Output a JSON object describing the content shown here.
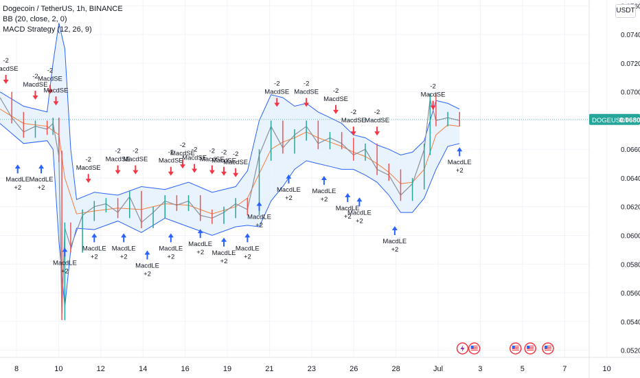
{
  "header": {
    "symbol_line": "Dogecoin / TetherUS, 1h, BINANCE",
    "bb_line": "BB (20, close, 2, 0)",
    "macd_line": "MACD Strategy (12, 26, 9)",
    "currency": "USDT"
  },
  "last_price_tag": {
    "symbol": "DOGEUSDT",
    "price": "0.06808"
  },
  "colors": {
    "band": "#2962ff",
    "band_fill": "#e3f0fc",
    "basis": "#f57c3a",
    "up": "#26a69a",
    "down": "#ef5350",
    "short_arrow": "#f23645",
    "long_arrow": "#2962ff",
    "last_line": "#26a69a",
    "grid": "#f0f3fa"
  },
  "chart_data": {
    "type": "line",
    "title": "Dogecoin / TetherUS, 1h, BINANCE",
    "xlabel": "",
    "ylabel": "",
    "y_ticks": [
      "0.07600",
      "0.07400",
      "0.07200",
      "0.07000",
      "0.06800",
      "0.06600",
      "0.06400",
      "0.06200",
      "0.06000",
      "0.05800",
      "0.05600",
      "0.05400",
      "0.05200"
    ],
    "x_ticks": [
      "8",
      "10",
      "12",
      "14",
      "16",
      "19",
      "21",
      "23",
      "26",
      "28",
      "Jul",
      "3",
      "5",
      "7",
      "10"
    ],
    "ylim": [
      0.0515,
      0.0764
    ],
    "x_range": [
      0,
      100
    ],
    "grid": true,
    "series": [
      {
        "name": "close",
        "points": [
          [
            0,
            0.0696
          ],
          [
            2,
            0.0682
          ],
          [
            4,
            0.0672
          ],
          [
            6,
            0.0676
          ],
          [
            8,
            0.0674
          ],
          [
            9,
            0.0678
          ],
          [
            10,
            0.0655
          ],
          [
            10.5,
            0.0545
          ],
          [
            11,
            0.0605
          ],
          [
            12,
            0.0592
          ],
          [
            14,
            0.0614
          ],
          [
            16,
            0.062
          ],
          [
            18,
            0.0622
          ],
          [
            20,
            0.0616
          ],
          [
            22,
            0.0627
          ],
          [
            24,
            0.0609
          ],
          [
            26,
            0.0616
          ],
          [
            28,
            0.0624
          ],
          [
            30,
            0.0621
          ],
          [
            32,
            0.0624
          ],
          [
            34,
            0.0614
          ],
          [
            36,
            0.0612
          ],
          [
            38,
            0.0616
          ],
          [
            40,
            0.0622
          ],
          [
            42,
            0.0618
          ],
          [
            44,
            0.0656
          ],
          [
            46,
            0.0676
          ],
          [
            48,
            0.0661
          ],
          [
            50,
            0.067
          ],
          [
            52,
            0.0676
          ],
          [
            54,
            0.0664
          ],
          [
            56,
            0.0668
          ],
          [
            58,
            0.0664
          ],
          [
            60,
            0.0656
          ],
          [
            62,
            0.066
          ],
          [
            64,
            0.0646
          ],
          [
            66,
            0.0642
          ],
          [
            68,
            0.0628
          ],
          [
            70,
            0.0636
          ],
          [
            72,
            0.066
          ],
          [
            73,
            0.0695
          ],
          [
            74,
            0.068
          ],
          [
            76,
            0.0682
          ],
          [
            78,
            0.068
          ]
        ]
      },
      {
        "name": "basis",
        "points": [
          [
            0,
            0.0688
          ],
          [
            4,
            0.0678
          ],
          [
            8,
            0.0676
          ],
          [
            10,
            0.067
          ],
          [
            11,
            0.064
          ],
          [
            13,
            0.0615
          ],
          [
            16,
            0.0617
          ],
          [
            20,
            0.0619
          ],
          [
            24,
            0.0618
          ],
          [
            28,
            0.0622
          ],
          [
            32,
            0.0621
          ],
          [
            36,
            0.0615
          ],
          [
            40,
            0.062
          ],
          [
            42,
            0.0626
          ],
          [
            44,
            0.0643
          ],
          [
            46,
            0.066
          ],
          [
            48,
            0.0665
          ],
          [
            50,
            0.0668
          ],
          [
            52,
            0.0672
          ],
          [
            54,
            0.0668
          ],
          [
            56,
            0.0665
          ],
          [
            58,
            0.0662
          ],
          [
            60,
            0.0658
          ],
          [
            62,
            0.0655
          ],
          [
            64,
            0.065
          ],
          [
            66,
            0.0644
          ],
          [
            68,
            0.0636
          ],
          [
            70,
            0.0637
          ],
          [
            72,
            0.0646
          ],
          [
            74,
            0.067
          ],
          [
            76,
            0.0677
          ],
          [
            78,
            0.0676
          ]
        ]
      },
      {
        "name": "upper",
        "points": [
          [
            0,
            0.07
          ],
          [
            4,
            0.069
          ],
          [
            8,
            0.0686
          ],
          [
            9,
            0.072
          ],
          [
            10,
            0.0748
          ],
          [
            11,
            0.073
          ],
          [
            12,
            0.066
          ],
          [
            13,
            0.0625
          ],
          [
            16,
            0.063
          ],
          [
            20,
            0.0628
          ],
          [
            24,
            0.0634
          ],
          [
            28,
            0.0632
          ],
          [
            32,
            0.0637
          ],
          [
            36,
            0.063
          ],
          [
            40,
            0.0634
          ],
          [
            42,
            0.0645
          ],
          [
            44,
            0.068
          ],
          [
            46,
            0.0698
          ],
          [
            48,
            0.0696
          ],
          [
            50,
            0.069
          ],
          [
            52,
            0.0692
          ],
          [
            54,
            0.0686
          ],
          [
            56,
            0.0682
          ],
          [
            58,
            0.0678
          ],
          [
            60,
            0.067
          ],
          [
            62,
            0.0668
          ],
          [
            64,
            0.0663
          ],
          [
            66,
            0.066
          ],
          [
            68,
            0.0656
          ],
          [
            70,
            0.0658
          ],
          [
            72,
            0.0666
          ],
          [
            74,
            0.0694
          ],
          [
            76,
            0.0692
          ],
          [
            78,
            0.0688
          ]
        ]
      },
      {
        "name": "lower",
        "points": [
          [
            0,
            0.0678
          ],
          [
            4,
            0.0664
          ],
          [
            8,
            0.0666
          ],
          [
            9,
            0.066
          ],
          [
            10,
            0.0596
          ],
          [
            11,
            0.055
          ],
          [
            12,
            0.059
          ],
          [
            13,
            0.0605
          ],
          [
            16,
            0.0604
          ],
          [
            20,
            0.061
          ],
          [
            24,
            0.0602
          ],
          [
            28,
            0.0612
          ],
          [
            32,
            0.0606
          ],
          [
            36,
            0.06
          ],
          [
            40,
            0.0606
          ],
          [
            42,
            0.0607
          ],
          [
            44,
            0.0606
          ],
          [
            46,
            0.0624
          ],
          [
            48,
            0.0634
          ],
          [
            50,
            0.0646
          ],
          [
            52,
            0.0652
          ],
          [
            54,
            0.065
          ],
          [
            56,
            0.0648
          ],
          [
            58,
            0.0646
          ],
          [
            60,
            0.0646
          ],
          [
            62,
            0.0642
          ],
          [
            64,
            0.0637
          ],
          [
            66,
            0.0628
          ],
          [
            68,
            0.0616
          ],
          [
            70,
            0.0616
          ],
          [
            72,
            0.0626
          ],
          [
            74,
            0.0646
          ],
          [
            76,
            0.0662
          ],
          [
            78,
            0.0664
          ]
        ]
      }
    ],
    "short_signals": [
      {
        "x": 1,
        "y": 0.0707,
        "label": "MacdSE",
        "qty": "-2"
      },
      {
        "x": 6,
        "y": 0.0696,
        "label": "MacdSE",
        "qty": "-2"
      },
      {
        "x": 8.5,
        "y": 0.07,
        "label": "MacdSE",
        "qty": "-2"
      },
      {
        "x": 9.5,
        "y": 0.0692,
        "label": "MacdSE",
        "qty": ""
      },
      {
        "x": 15,
        "y": 0.0638,
        "label": "MacdSE",
        "qty": "-2"
      },
      {
        "x": 20,
        "y": 0.0644,
        "label": "MacdSE",
        "qty": "-2"
      },
      {
        "x": 23,
        "y": 0.0644,
        "label": "MacdSE",
        "qty": "-2"
      },
      {
        "x": 29,
        "y": 0.0643,
        "label": "MacdSE",
        "qty": "-2"
      },
      {
        "x": 31,
        "y": 0.0648,
        "label": "MacdSE",
        "qty": "-2"
      },
      {
        "x": 33,
        "y": 0.0645,
        "label": "MacdSE",
        "qty": "-2"
      },
      {
        "x": 36,
        "y": 0.0644,
        "label": "MacdSE",
        "qty": "-2"
      },
      {
        "x": 38,
        "y": 0.0643,
        "label": "MacdSE",
        "qty": "-2"
      },
      {
        "x": 40,
        "y": 0.0642,
        "label": "MacdSE",
        "qty": "-2"
      },
      {
        "x": 47,
        "y": 0.0691,
        "label": "MacdSE",
        "qty": "-2"
      },
      {
        "x": 52,
        "y": 0.0691,
        "label": "MacdSE",
        "qty": "-2"
      },
      {
        "x": 57,
        "y": 0.0686,
        "label": "MacdSE",
        "qty": "-2"
      },
      {
        "x": 60,
        "y": 0.0671,
        "label": "MacdSE",
        "qty": "-2"
      },
      {
        "x": 64,
        "y": 0.0671,
        "label": "MacdSE",
        "qty": "-2"
      },
      {
        "x": 73.5,
        "y": 0.0689,
        "label": "MacdSE",
        "qty": "-2"
      }
    ],
    "long_signals": [
      {
        "x": 3,
        "y": 0.0648,
        "label": "MacdLE",
        "qty": "+2"
      },
      {
        "x": 7,
        "y": 0.0648,
        "label": "MacdLE",
        "qty": "+2"
      },
      {
        "x": 11,
        "y": 0.059,
        "label": "MacdLE",
        "qty": "+2"
      },
      {
        "x": 16,
        "y": 0.06,
        "label": "MacdLE",
        "qty": "+2"
      },
      {
        "x": 21,
        "y": 0.06,
        "label": "MacdLE",
        "qty": "+2"
      },
      {
        "x": 25,
        "y": 0.0588,
        "label": "MacdLE",
        "qty": "+2"
      },
      {
        "x": 29,
        "y": 0.06,
        "label": "MacdLE",
        "qty": "+2"
      },
      {
        "x": 34,
        "y": 0.0603,
        "label": "MacdLE",
        "qty": "+2"
      },
      {
        "x": 38,
        "y": 0.0597,
        "label": "MacdLE",
        "qty": "+2"
      },
      {
        "x": 42,
        "y": 0.06,
        "label": "MacdLE",
        "qty": "+2"
      },
      {
        "x": 44,
        "y": 0.0622,
        "label": "MacdLE",
        "qty": "+2"
      },
      {
        "x": 49,
        "y": 0.0641,
        "label": "MacdLE",
        "qty": "+2"
      },
      {
        "x": 55,
        "y": 0.064,
        "label": "MacdLE",
        "qty": "+2"
      },
      {
        "x": 59,
        "y": 0.0628,
        "label": "MacdLE",
        "qty": "+2"
      },
      {
        "x": 61,
        "y": 0.0625,
        "label": "MacdLE",
        "qty": "+2"
      },
      {
        "x": 67,
        "y": 0.0605,
        "label": "MacdLE",
        "qty": "+2"
      },
      {
        "x": 78,
        "y": 0.066,
        "label": "MacdLE",
        "qty": "+2"
      }
    ],
    "event_icons": [
      {
        "x": 78.5,
        "name": "lightning-icon"
      },
      {
        "x": 80.5,
        "name": "us-flag-icon"
      },
      {
        "x": 87.5,
        "name": "us-flag-icon"
      },
      {
        "x": 90,
        "name": "us-flag-icon"
      },
      {
        "x": 93,
        "name": "us-flag-icon"
      }
    ]
  }
}
